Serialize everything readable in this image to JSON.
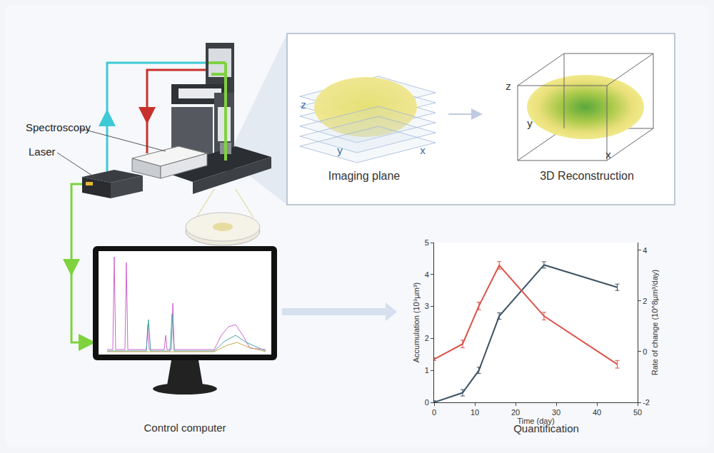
{
  "diagram": {
    "labels": {
      "spectroscopy": "Spectroscopy",
      "laser": "Laser",
      "imaging_plane": "Imaging plane",
      "reconstruction": "3D Reconstruction",
      "computer": "Control computer",
      "quantification": "Quantification"
    },
    "imaging_axes": {
      "z": "z",
      "y": "y",
      "x": "x"
    },
    "reconstruction_axes": {
      "z": "z",
      "y": "y",
      "x": "x"
    }
  },
  "chart_data": {
    "type": "line",
    "x_label": "Time (day)",
    "y_label": "Accumulation (10⁹µm³)",
    "y2_label": "Rate of change (10^8µm³/day)",
    "xlim": [
      0,
      50
    ],
    "xticks": [
      0,
      10,
      20,
      30,
      40,
      50
    ],
    "ylim": [
      0,
      5
    ],
    "yticks": [
      0,
      1,
      2,
      3,
      4,
      5
    ],
    "y2lim": [
      -2,
      4.3
    ],
    "y2ticks": [
      -2,
      0,
      2,
      4
    ],
    "grid": false,
    "series": [
      {
        "name": "Accumulation",
        "color": "#3d5363",
        "x": [
          0,
          7,
          11,
          16,
          27,
          45
        ],
        "values": [
          0,
          0.3,
          1.0,
          2.7,
          4.3,
          3.6
        ],
        "errors": [
          0.05,
          0.1,
          0.1,
          0.1,
          0.1,
          0.1
        ]
      },
      {
        "name": "Rate of change",
        "color": "#d9534a",
        "axis": "y2",
        "x": [
          0,
          7,
          11,
          16,
          27,
          45
        ],
        "values": [
          -0.3,
          0.3,
          1.8,
          3.4,
          1.4,
          -0.5
        ],
        "errors": [
          0.05,
          0.15,
          0.15,
          0.15,
          0.15,
          0.15
        ]
      }
    ]
  }
}
